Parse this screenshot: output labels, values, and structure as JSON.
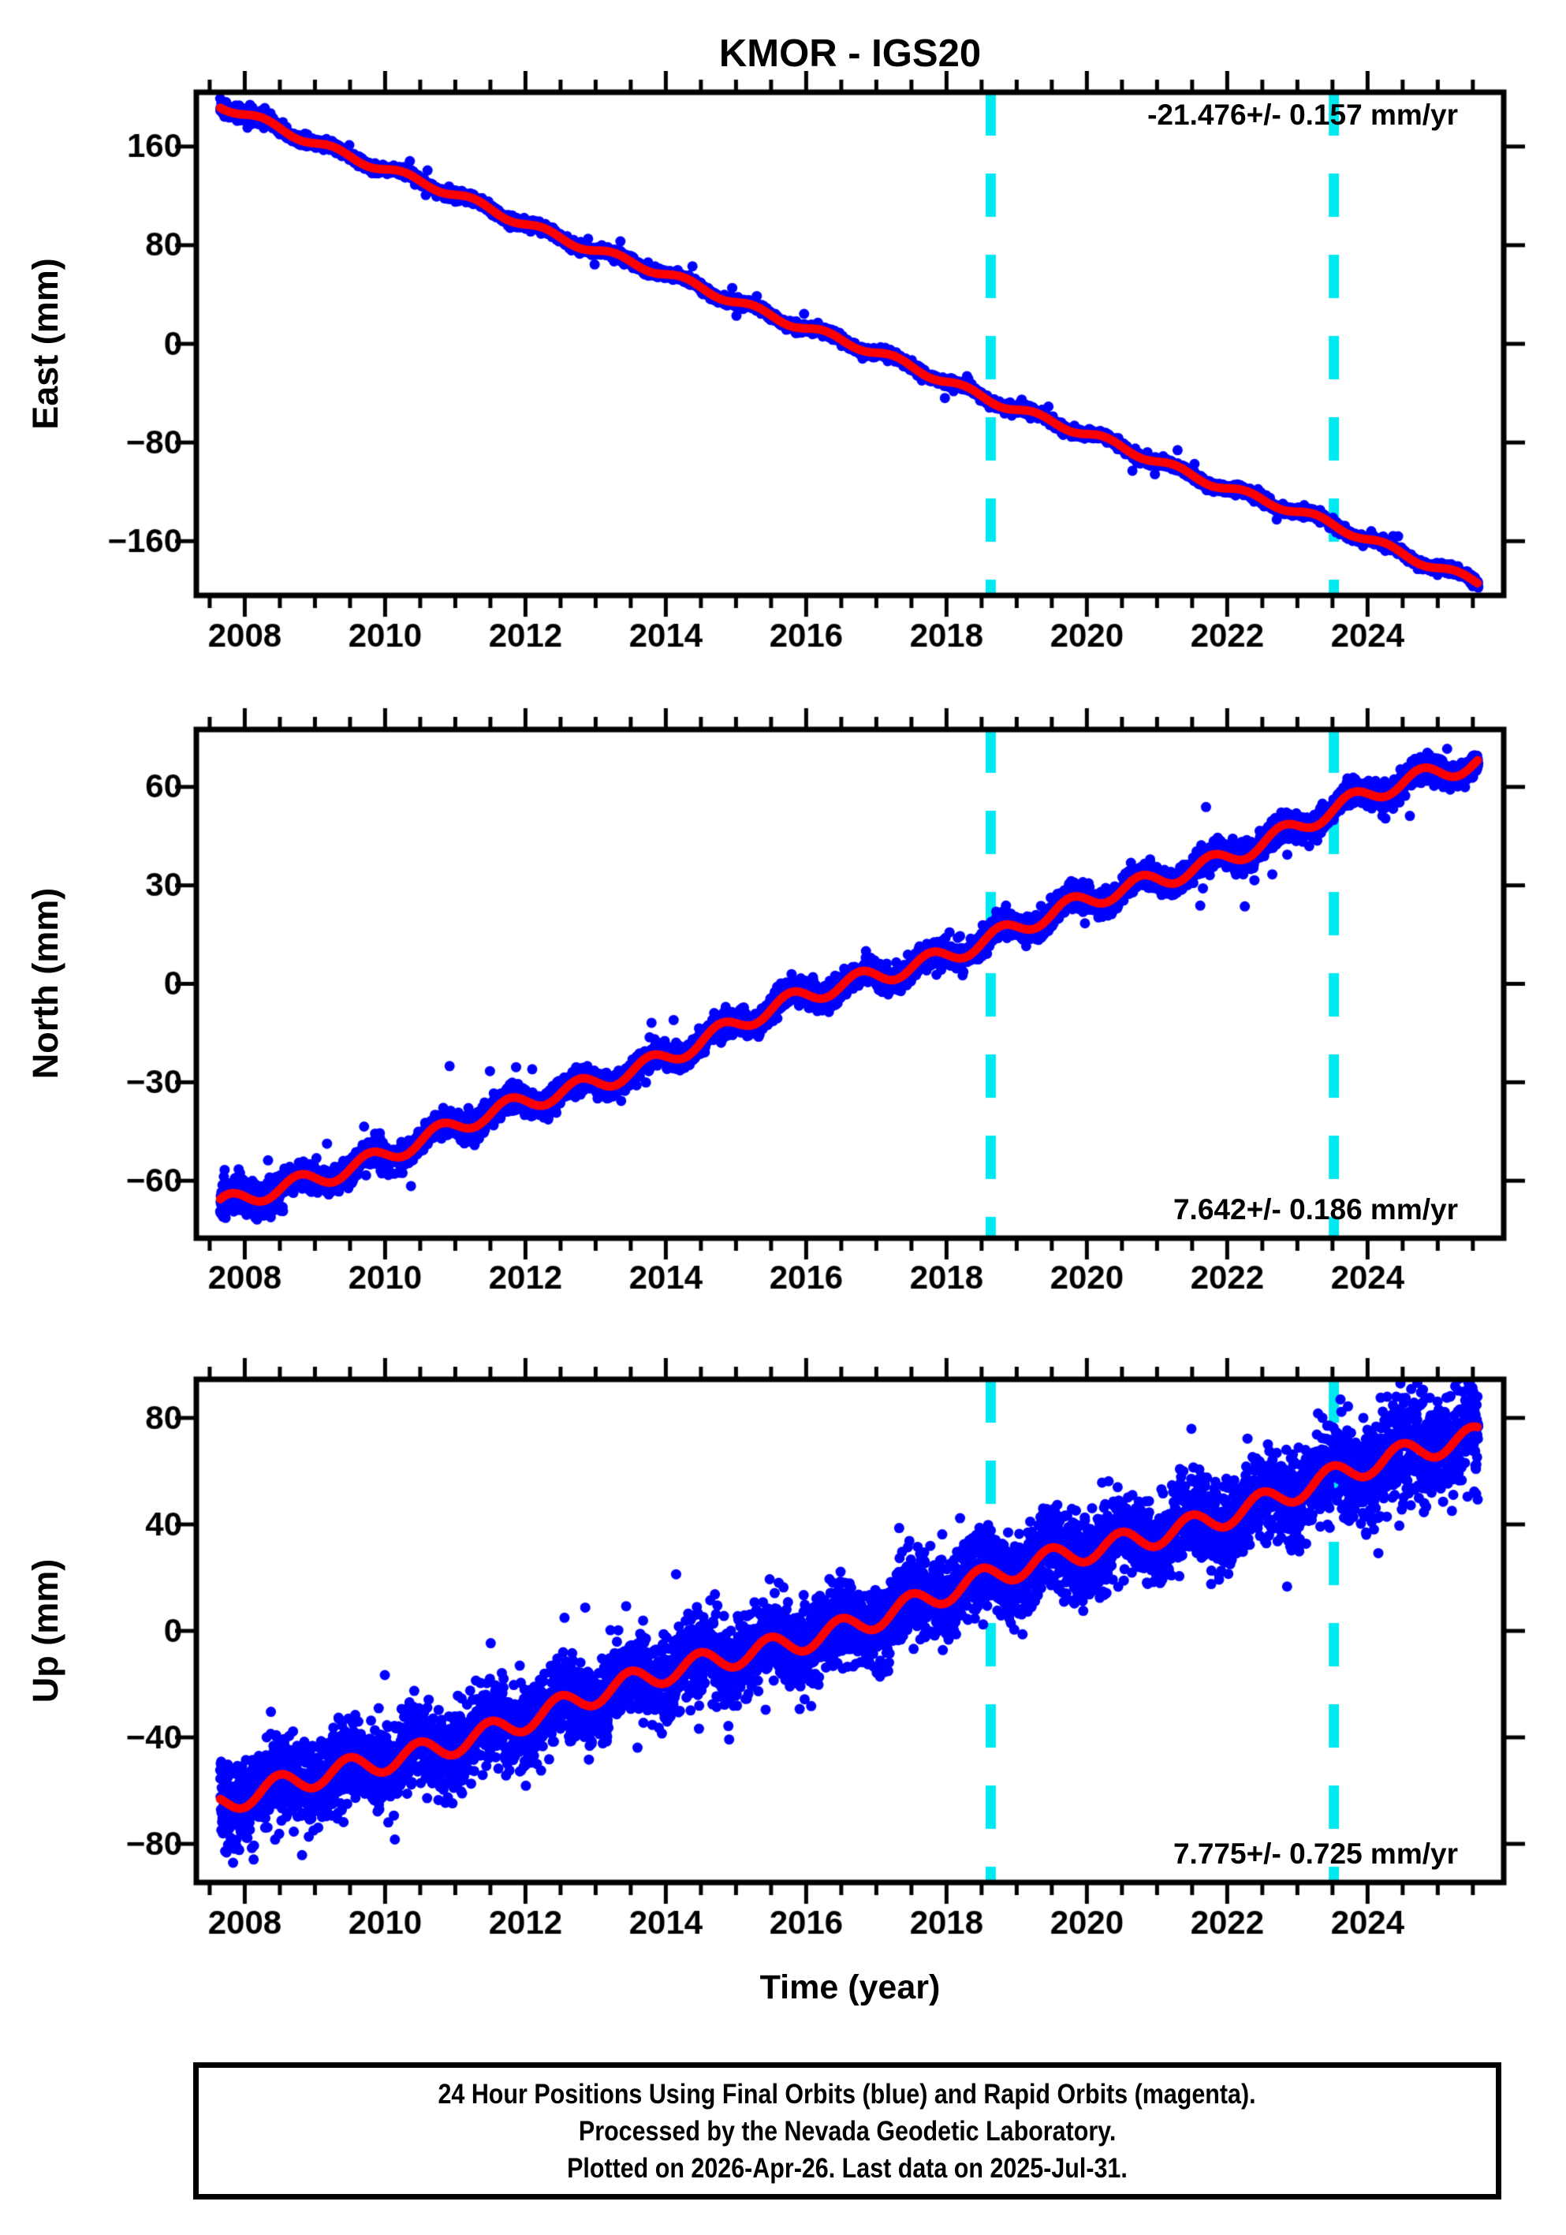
{
  "title": "KMOR - IGS20",
  "xlabel": "Time (year)",
  "footer": {
    "line1": "24 Hour Positions Using Final Orbits (blue) and Rapid Orbits (magenta).",
    "line2": "Processed by the Nevada Geodetic Laboratory.",
    "line3": "Plotted on 2026-Apr-26. Last data on 2025-Jul-31."
  },
  "colors": {
    "points_final": "#0000FF",
    "points_rapid": "#FF00FF",
    "trend_line": "#FF0000",
    "event_line": "#00E8F0",
    "frame": "#000000",
    "background": "#FFFFFF"
  },
  "event_lines_year": [
    2018.63,
    2023.52
  ],
  "x_axis": {
    "xlim": [
      2007.31,
      2025.94
    ],
    "major_ticks": [
      2008,
      2010,
      2012,
      2014,
      2016,
      2018,
      2020,
      2022,
      2024
    ],
    "minor_tick_step": 0.5,
    "minor_tick_start": 2007.5,
    "minor_tick_end": 2025.5
  },
  "chart_data": [
    {
      "type": "scatter",
      "name": "East",
      "ylabel": "East (mm)",
      "rate_label": "-21.476+/- 0.157 mm/yr",
      "rate_mm_per_yr": -21.476,
      "rate_sigma_mm_per_yr": 0.157,
      "yticks": [
        160,
        80,
        0,
        -80,
        -160
      ],
      "ylim": [
        -204,
        204
      ],
      "x_start": 2007.65,
      "x_end": 2025.58,
      "start_mm": 192,
      "scatter_sigma_mm": 1.8,
      "sigma_growth_after": 2099,
      "sigma_growth_rate": 0,
      "early_boost_until": 2008.6,
      "early_boost": 1.5,
      "outlier": {
        "prob": 0.004,
        "min_mm": 5,
        "max_mm": 12
      },
      "seasonal": [
        {
          "amp": 2.8,
          "period": 1.0,
          "phase": 4.0
        },
        {
          "amp": 1.2,
          "period": 3.1,
          "phase": 1.3
        },
        {
          "amp": 0.8,
          "period": 7.3,
          "phase": 0.5
        }
      ],
      "trend_samples": {
        "years": [
          2008,
          2010,
          2012,
          2014,
          2016,
          2018,
          2020,
          2022,
          2024,
          2025.58
        ],
        "mm": [
          185,
          142,
          99,
          56,
          13,
          -30,
          -73,
          -116,
          -159,
          -193
        ]
      },
      "seed": 7
    },
    {
      "type": "scatter",
      "name": "North",
      "ylabel": "North (mm)",
      "rate_label": "7.642+/- 0.186 mm/yr",
      "rate_mm_per_yr": 7.642,
      "rate_sigma_mm_per_yr": 0.186,
      "yticks": [
        60,
        30,
        0,
        -30,
        -60
      ],
      "ylim": [
        -77.5,
        77.5
      ],
      "x_start": 2007.65,
      "x_end": 2025.58,
      "start_mm": -69.5,
      "scatter_sigma_mm": 1.9,
      "sigma_growth_after": 2099,
      "sigma_growth_rate": 0,
      "early_boost_until": 2008.6,
      "early_boost": 1.6,
      "outlier": {
        "prob": 0.005,
        "min_mm": 5,
        "max_mm": 15
      },
      "seasonal": [
        {
          "amp": 2.6,
          "period": 1.0,
          "phase": 0.8
        },
        {
          "amp": 1.4,
          "period": 4.2,
          "phase": 2.0
        },
        {
          "amp": 0.9,
          "period": 8.1,
          "phase": 1.0
        }
      ],
      "trend_samples": {
        "years": [
          2008,
          2010,
          2012,
          2014,
          2016,
          2018,
          2020,
          2022,
          2024,
          2025.58
        ],
        "mm": [
          -67,
          -52,
          -36,
          -21,
          -6,
          10,
          25,
          40,
          55,
          67
        ]
      },
      "seed": 21
    },
    {
      "type": "scatter",
      "name": "Up",
      "ylabel": "Up (mm)",
      "rate_label": "7.775+/- 0.725 mm/yr",
      "rate_mm_per_yr": 7.775,
      "rate_sigma_mm_per_yr": 0.725,
      "yticks": [
        80,
        40,
        0,
        -40,
        -80
      ],
      "ylim": [
        -94.5,
        94.5
      ],
      "x_start": 2007.65,
      "x_end": 2025.58,
      "start_mm": -66.5,
      "scatter_sigma_mm": 7.5,
      "sigma_growth_after": 2021,
      "sigma_growth_rate": 0.7,
      "early_boost_until": 2008.6,
      "early_boost": 1.15,
      "outlier": {
        "prob": 0.004,
        "min_mm": 18,
        "max_mm": 30
      },
      "seasonal": [
        {
          "amp": 4.2,
          "period": 1.0,
          "phase": 2.6
        },
        {
          "amp": 1.8,
          "period": 5.3,
          "phase": 0.7
        }
      ],
      "trend_samples": {
        "years": [
          2008,
          2010,
          2012,
          2014,
          2016,
          2018,
          2020,
          2022,
          2024,
          2025.58
        ],
        "mm": [
          -64,
          -48,
          -33,
          -17,
          -2,
          14,
          30,
          45,
          61,
          73
        ]
      },
      "seed": 77
    }
  ]
}
